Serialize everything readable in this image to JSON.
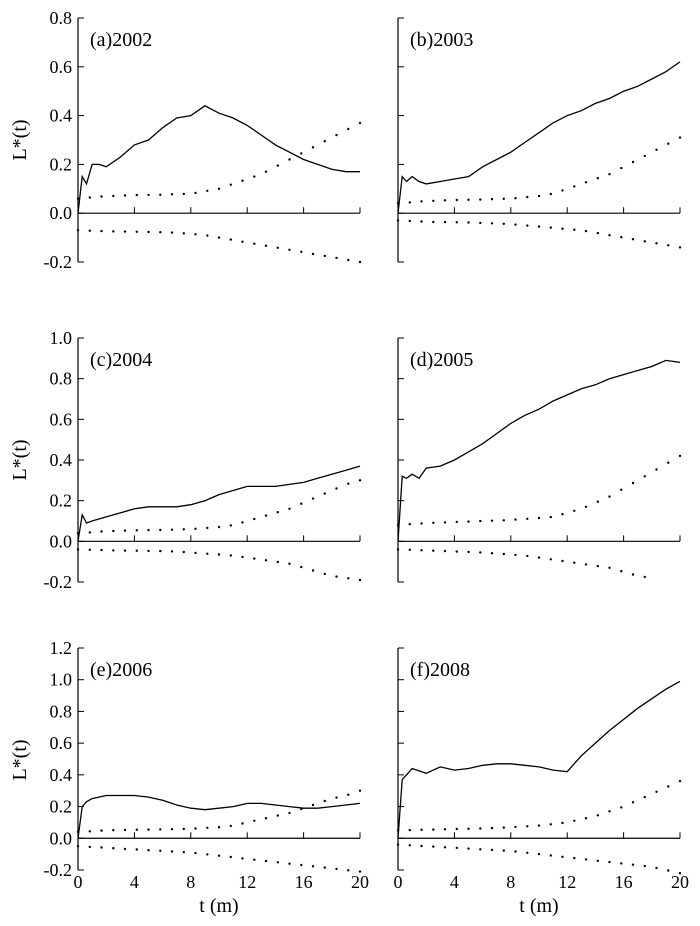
{
  "figure": {
    "y_axis_label": "L*(t)",
    "x_axis_label": "t (m)"
  },
  "chart_data": [
    {
      "type": "line",
      "panel_label": "(a)2002",
      "xlim": [
        0,
        20
      ],
      "ylim": [
        -0.2,
        0.8
      ],
      "yticks": [
        -0.2,
        0.0,
        0.2,
        0.4,
        0.6,
        0.8
      ],
      "ytick_labels": [
        "-0.2",
        "0.0",
        "0.2",
        "0.4",
        "0.6",
        "0.8"
      ],
      "xticks": [
        0,
        4,
        8,
        12,
        16,
        20
      ],
      "xtick_labels": [],
      "y_tick_labels_shown": true,
      "series": [
        {
          "style": "solid",
          "x": [
            0,
            0.3,
            0.6,
            1,
            1.5,
            2,
            3,
            4,
            5,
            6,
            7,
            8,
            9,
            10,
            11,
            12,
            13,
            14,
            15,
            16,
            17,
            18,
            19,
            20
          ],
          "y": [
            0.0,
            0.15,
            0.12,
            0.2,
            0.2,
            0.19,
            0.23,
            0.28,
            0.3,
            0.35,
            0.39,
            0.4,
            0.44,
            0.41,
            0.39,
            0.36,
            0.32,
            0.28,
            0.25,
            0.22,
            0.2,
            0.18,
            0.17,
            0.17
          ]
        },
        {
          "style": "dotted",
          "x": [
            0,
            1,
            2,
            3,
            4,
            5,
            6,
            7,
            8,
            9,
            10,
            11,
            12,
            13,
            14,
            15,
            16,
            17,
            18,
            19,
            20
          ],
          "y": [
            0.06,
            0.065,
            0.07,
            0.072,
            0.074,
            0.075,
            0.076,
            0.078,
            0.08,
            0.09,
            0.1,
            0.12,
            0.14,
            0.16,
            0.19,
            0.22,
            0.25,
            0.28,
            0.31,
            0.34,
            0.37
          ]
        },
        {
          "style": "dotted",
          "x": [
            0,
            1,
            2,
            3,
            4,
            5,
            6,
            7,
            8,
            9,
            10,
            11,
            12,
            13,
            14,
            15,
            16,
            17,
            18,
            19,
            20
          ],
          "y": [
            -0.07,
            -0.072,
            -0.074,
            -0.075,
            -0.076,
            -0.077,
            -0.078,
            -0.08,
            -0.085,
            -0.09,
            -0.1,
            -0.11,
            -0.12,
            -0.13,
            -0.14,
            -0.15,
            -0.16,
            -0.17,
            -0.18,
            -0.19,
            -0.2
          ]
        }
      ]
    },
    {
      "type": "line",
      "panel_label": "(b)2003",
      "xlim": [
        0,
        20
      ],
      "ylim": [
        -0.2,
        0.8
      ],
      "yticks": [
        -0.2,
        0.0,
        0.2,
        0.4,
        0.6,
        0.8
      ],
      "ytick_labels": [],
      "xticks": [
        0,
        4,
        8,
        12,
        16,
        20
      ],
      "xtick_labels": [],
      "y_tick_labels_shown": false,
      "series": [
        {
          "style": "solid",
          "x": [
            0,
            0.3,
            0.6,
            1,
            1.5,
            2,
            3,
            4,
            5,
            6,
            7,
            8,
            9,
            10,
            11,
            12,
            13,
            14,
            15,
            16,
            17,
            18,
            19,
            20
          ],
          "y": [
            0.0,
            0.15,
            0.13,
            0.15,
            0.13,
            0.12,
            0.13,
            0.14,
            0.15,
            0.19,
            0.22,
            0.25,
            0.29,
            0.33,
            0.37,
            0.4,
            0.42,
            0.45,
            0.47,
            0.5,
            0.52,
            0.55,
            0.58,
            0.62
          ]
        },
        {
          "style": "dotted",
          "x": [
            0,
            1,
            2,
            3,
            4,
            5,
            6,
            7,
            8,
            9,
            10,
            11,
            12,
            13,
            14,
            15,
            16,
            17,
            18,
            19,
            20
          ],
          "y": [
            0.04,
            0.045,
            0.05,
            0.052,
            0.054,
            0.055,
            0.056,
            0.058,
            0.06,
            0.065,
            0.07,
            0.08,
            0.1,
            0.12,
            0.14,
            0.16,
            0.19,
            0.22,
            0.25,
            0.28,
            0.31
          ]
        },
        {
          "style": "dotted",
          "x": [
            0,
            1,
            2,
            3,
            4,
            5,
            6,
            7,
            8,
            9,
            10,
            11,
            12,
            13,
            14,
            15,
            16,
            17,
            18,
            19,
            20
          ],
          "y": [
            -0.03,
            -0.032,
            -0.035,
            -0.036,
            -0.037,
            -0.038,
            -0.04,
            -0.042,
            -0.045,
            -0.05,
            -0.055,
            -0.06,
            -0.065,
            -0.07,
            -0.08,
            -0.09,
            -0.1,
            -0.11,
            -0.12,
            -0.13,
            -0.14
          ]
        }
      ]
    },
    {
      "type": "line",
      "panel_label": "(c)2004",
      "xlim": [
        0,
        20
      ],
      "ylim": [
        -0.2,
        1.0
      ],
      "yticks": [
        -0.2,
        0.0,
        0.2,
        0.4,
        0.6,
        0.8,
        1.0
      ],
      "ytick_labels": [
        "-0.2",
        "0.0",
        "0.2",
        "0.4",
        "0.6",
        "0.8",
        "1.0"
      ],
      "xticks": [
        0,
        4,
        8,
        12,
        16,
        20
      ],
      "xtick_labels": [],
      "y_tick_labels_shown": true,
      "series": [
        {
          "style": "solid",
          "x": [
            0,
            0.3,
            0.6,
            1,
            2,
            3,
            4,
            5,
            6,
            7,
            8,
            9,
            10,
            11,
            12,
            13,
            14,
            15,
            16,
            17,
            18,
            19,
            20
          ],
          "y": [
            0.0,
            0.13,
            0.09,
            0.1,
            0.12,
            0.14,
            0.16,
            0.17,
            0.17,
            0.17,
            0.18,
            0.2,
            0.23,
            0.25,
            0.27,
            0.27,
            0.27,
            0.28,
            0.29,
            0.31,
            0.33,
            0.35,
            0.37
          ]
        },
        {
          "style": "dotted",
          "x": [
            0,
            1,
            2,
            3,
            4,
            5,
            6,
            7,
            8,
            9,
            10,
            11,
            12,
            13,
            14,
            15,
            16,
            17,
            18,
            19,
            20
          ],
          "y": [
            0.04,
            0.045,
            0.05,
            0.052,
            0.054,
            0.055,
            0.056,
            0.058,
            0.06,
            0.065,
            0.07,
            0.08,
            0.1,
            0.12,
            0.14,
            0.16,
            0.19,
            0.22,
            0.25,
            0.28,
            0.3
          ]
        },
        {
          "style": "dotted",
          "x": [
            0,
            1,
            2,
            3,
            4,
            5,
            6,
            7,
            8,
            9,
            10,
            11,
            12,
            13,
            14,
            15,
            16,
            17,
            18,
            19,
            20
          ],
          "y": [
            -0.04,
            -0.042,
            -0.044,
            -0.045,
            -0.046,
            -0.047,
            -0.048,
            -0.05,
            -0.055,
            -0.06,
            -0.065,
            -0.07,
            -0.08,
            -0.09,
            -0.1,
            -0.11,
            -0.13,
            -0.15,
            -0.17,
            -0.18,
            -0.19
          ]
        }
      ]
    },
    {
      "type": "line",
      "panel_label": "(d)2005",
      "xlim": [
        0,
        20
      ],
      "ylim": [
        -0.2,
        1.0
      ],
      "yticks": [
        -0.2,
        0.0,
        0.2,
        0.4,
        0.6,
        0.8,
        1.0
      ],
      "ytick_labels": [],
      "xticks": [
        0,
        4,
        8,
        12,
        16,
        20
      ],
      "xtick_labels": [],
      "y_tick_labels_shown": false,
      "series": [
        {
          "style": "solid",
          "x": [
            0,
            0.3,
            0.6,
            1,
            1.5,
            2,
            3,
            4,
            5,
            6,
            7,
            8,
            9,
            10,
            11,
            12,
            13,
            14,
            15,
            16,
            17,
            18,
            19,
            20
          ],
          "y": [
            0.0,
            0.32,
            0.31,
            0.33,
            0.31,
            0.36,
            0.37,
            0.4,
            0.44,
            0.48,
            0.53,
            0.58,
            0.62,
            0.65,
            0.69,
            0.72,
            0.75,
            0.77,
            0.8,
            0.82,
            0.84,
            0.86,
            0.89,
            0.88
          ]
        },
        {
          "style": "dotted",
          "x": [
            0,
            1,
            2,
            3,
            4,
            5,
            6,
            7,
            8,
            9,
            10,
            11,
            12,
            13,
            14,
            15,
            16,
            17,
            18,
            19,
            20
          ],
          "y": [
            0.08,
            0.085,
            0.09,
            0.092,
            0.095,
            0.097,
            0.1,
            0.102,
            0.105,
            0.11,
            0.115,
            0.12,
            0.14,
            0.16,
            0.19,
            0.22,
            0.26,
            0.3,
            0.34,
            0.38,
            0.42
          ]
        },
        {
          "style": "dotted",
          "x": [
            0,
            1,
            2,
            3,
            4,
            5,
            6,
            7,
            8,
            9,
            10,
            11,
            12,
            13,
            14,
            15,
            16,
            17,
            18
          ],
          "y": [
            -0.04,
            -0.042,
            -0.045,
            -0.047,
            -0.05,
            -0.052,
            -0.055,
            -0.06,
            -0.065,
            -0.07,
            -0.08,
            -0.09,
            -0.1,
            -0.11,
            -0.12,
            -0.13,
            -0.15,
            -0.17,
            -0.18
          ]
        }
      ]
    },
    {
      "type": "line",
      "panel_label": "(e)2006",
      "xlim": [
        0,
        20
      ],
      "ylim": [
        -0.2,
        1.2
      ],
      "yticks": [
        -0.2,
        0.0,
        0.2,
        0.4,
        0.6,
        0.8,
        1.0,
        1.2
      ],
      "ytick_labels": [
        "-0.2",
        "0.0",
        "0.2",
        "0.4",
        "0.6",
        "0.8",
        "1.0",
        "1.2"
      ],
      "xticks": [
        0,
        4,
        8,
        12,
        16,
        20
      ],
      "xtick_labels": [
        "0",
        "4",
        "8",
        "12",
        "16",
        "20"
      ],
      "y_tick_labels_shown": true,
      "series": [
        {
          "style": "solid",
          "x": [
            0,
            0.3,
            0.6,
            1,
            2,
            3,
            4,
            5,
            6,
            7,
            8,
            9,
            10,
            11,
            12,
            13,
            14,
            15,
            16,
            17,
            18,
            19,
            20
          ],
          "y": [
            0.0,
            0.2,
            0.23,
            0.25,
            0.27,
            0.27,
            0.27,
            0.26,
            0.24,
            0.21,
            0.19,
            0.18,
            0.19,
            0.2,
            0.22,
            0.22,
            0.21,
            0.2,
            0.19,
            0.19,
            0.2,
            0.21,
            0.22
          ]
        },
        {
          "style": "dotted",
          "x": [
            0,
            1,
            2,
            3,
            4,
            5,
            6,
            7,
            8,
            9,
            10,
            11,
            12,
            13,
            14,
            15,
            16,
            17,
            18,
            19,
            20
          ],
          "y": [
            0.04,
            0.045,
            0.05,
            0.052,
            0.054,
            0.055,
            0.056,
            0.058,
            0.06,
            0.065,
            0.07,
            0.08,
            0.1,
            0.12,
            0.14,
            0.16,
            0.19,
            0.22,
            0.25,
            0.27,
            0.3
          ]
        },
        {
          "style": "dotted",
          "x": [
            0,
            1,
            2,
            3,
            4,
            5,
            6,
            7,
            8,
            9,
            10,
            11,
            12,
            13,
            14,
            15,
            16,
            17,
            18,
            19,
            20
          ],
          "y": [
            -0.05,
            -0.055,
            -0.06,
            -0.065,
            -0.07,
            -0.075,
            -0.08,
            -0.085,
            -0.09,
            -0.1,
            -0.11,
            -0.12,
            -0.13,
            -0.14,
            -0.15,
            -0.16,
            -0.17,
            -0.18,
            -0.19,
            -0.2,
            -0.21
          ]
        }
      ]
    },
    {
      "type": "line",
      "panel_label": "(f)2008",
      "xlim": [
        0,
        20
      ],
      "ylim": [
        -0.2,
        1.2
      ],
      "yticks": [
        -0.2,
        0.0,
        0.2,
        0.4,
        0.6,
        0.8,
        1.0,
        1.2
      ],
      "ytick_labels": [],
      "xticks": [
        0,
        4,
        8,
        12,
        16,
        20
      ],
      "xtick_labels": [
        "0",
        "4",
        "8",
        "12",
        "16",
        "20"
      ],
      "y_tick_labels_shown": false,
      "series": [
        {
          "style": "solid",
          "x": [
            0,
            0.3,
            0.6,
            1,
            2,
            3,
            4,
            5,
            6,
            7,
            8,
            9,
            10,
            11,
            12,
            13,
            14,
            15,
            16,
            17,
            18,
            19,
            20
          ],
          "y": [
            0.0,
            0.37,
            0.4,
            0.44,
            0.41,
            0.45,
            0.43,
            0.44,
            0.46,
            0.47,
            0.47,
            0.46,
            0.45,
            0.43,
            0.42,
            0.52,
            0.6,
            0.68,
            0.75,
            0.82,
            0.88,
            0.94,
            0.99
          ]
        },
        {
          "style": "dotted",
          "x": [
            0,
            1,
            2,
            3,
            4,
            5,
            6,
            7,
            8,
            9,
            10,
            11,
            12,
            13,
            14,
            15,
            16,
            17,
            18,
            19,
            20
          ],
          "y": [
            0.05,
            0.052,
            0.054,
            0.056,
            0.058,
            0.06,
            0.062,
            0.065,
            0.07,
            0.075,
            0.08,
            0.09,
            0.1,
            0.12,
            0.14,
            0.17,
            0.2,
            0.24,
            0.28,
            0.32,
            0.36
          ]
        },
        {
          "style": "dotted",
          "x": [
            0,
            1,
            2,
            3,
            4,
            5,
            6,
            7,
            8,
            9,
            10,
            11,
            12,
            13,
            14,
            15,
            16,
            17,
            18,
            19,
            20
          ],
          "y": [
            -0.04,
            -0.045,
            -0.05,
            -0.055,
            -0.06,
            -0.065,
            -0.07,
            -0.075,
            -0.08,
            -0.09,
            -0.1,
            -0.11,
            -0.12,
            -0.13,
            -0.14,
            -0.15,
            -0.16,
            -0.17,
            -0.18,
            -0.2,
            -0.22
          ]
        }
      ]
    }
  ]
}
